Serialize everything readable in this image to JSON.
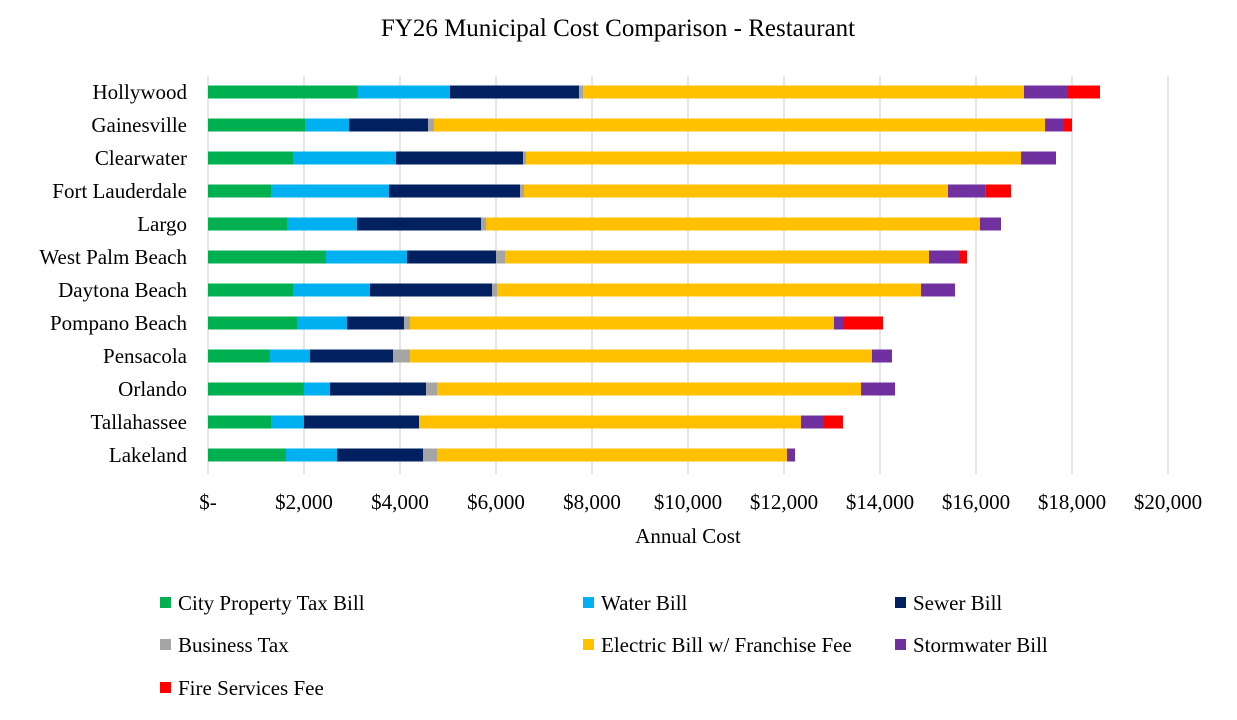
{
  "chart_data": {
    "type": "bar",
    "orientation": "horizontal",
    "stacked": true,
    "title": "FY26 Municipal Cost Comparison - Restaurant",
    "xlabel": "Annual Cost",
    "ylabel": "",
    "xlim": [
      0,
      20000
    ],
    "x_ticks": [
      0,
      2000,
      4000,
      6000,
      8000,
      10000,
      12000,
      14000,
      16000,
      18000,
      20000
    ],
    "x_tick_labels": [
      "$-",
      "$2,000",
      "$4,000",
      "$6,000",
      "$8,000",
      "$10,000",
      "$12,000",
      "$14,000",
      "$16,000",
      "$18,000",
      "$20,000"
    ],
    "grid": "vertical",
    "legend_position": "bottom",
    "categories": [
      "Hollywood",
      "Gainesville",
      "Clearwater",
      "Fort Lauderdale",
      "Largo",
      "West Palm Beach",
      "Daytona Beach",
      "Pompano Beach",
      "Pensacola",
      "Orlando",
      "Tallahassee",
      "Lakeland"
    ],
    "series": [
      {
        "name": "City Property Tax Bill",
        "color": "#00B050",
        "values": [
          3125,
          2021,
          1771,
          1313,
          1646,
          2458,
          1771,
          1854,
          1292,
          2000,
          1313,
          1625
        ]
      },
      {
        "name": "Water Bill",
        "color": "#00B0F0",
        "values": [
          1917,
          917,
          2146,
          2458,
          1458,
          1688,
          1604,
          1042,
          833,
          542,
          687,
          1063
        ]
      },
      {
        "name": "Sewer Bill",
        "color": "#002060",
        "values": [
          2687,
          1645,
          2646,
          2729,
          2584,
          1854,
          2542,
          1187,
          1729,
          2000,
          2396,
          1791
        ]
      },
      {
        "name": "Business Tax",
        "color": "#A5A5A5",
        "values": [
          84,
          125,
          62,
          83,
          104,
          188,
          104,
          125,
          354,
          229,
          0,
          292
        ]
      },
      {
        "name": "Electric Bill w/ Franchise Fee",
        "color": "#FFC000",
        "values": [
          9187,
          12730,
          10313,
          8834,
          10291,
          8833,
          8833,
          8834,
          9625,
          8833,
          7958,
          7292
        ]
      },
      {
        "name": "Stormwater Bill",
        "color": "#7030A0",
        "values": [
          917,
          395,
          729,
          777,
          438,
          646,
          709,
          208,
          417,
          709,
          459,
          166
        ]
      },
      {
        "name": "Fire Services Fee",
        "color": "#FF0000",
        "values": [
          666,
          167,
          0,
          535,
          0,
          146,
          0,
          813,
          0,
          0,
          416,
          0
        ]
      }
    ]
  }
}
